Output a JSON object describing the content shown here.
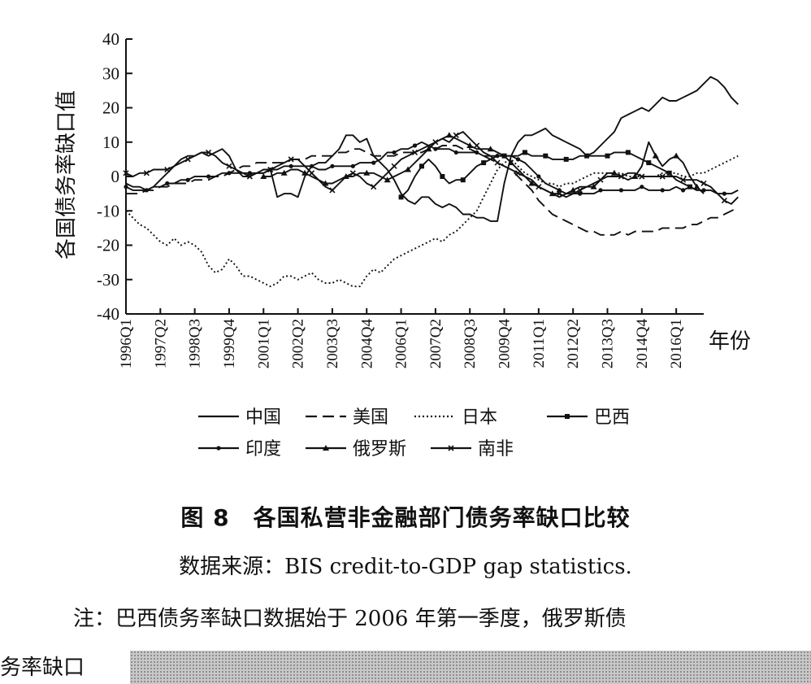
{
  "chart_data": {
    "type": "line",
    "title": "",
    "xlabel": "年份",
    "ylabel": "各国债务率缺口值",
    "ylim": [
      -40,
      40
    ],
    "yticks": [
      40,
      30,
      20,
      10,
      0,
      -10,
      -20,
      -30,
      -40
    ],
    "xticks": [
      "1996Q1",
      "1997Q2",
      "1998Q3",
      "1999Q4",
      "2001Q1",
      "2002Q2",
      "2003Q3",
      "2004Q4",
      "2006Q1",
      "2007Q2",
      "2008Q3",
      "2009Q4",
      "2011Q1",
      "2012Q2",
      "2013Q3",
      "2014Q4",
      "2016Q1"
    ],
    "x_start": "1996Q1",
    "x_end": "2017Q1",
    "legend_position": "bottom",
    "series": [
      {
        "name": "中国",
        "style": "solid",
        "start": "1996Q1",
        "values": [
          -2,
          -3,
          -3,
          -4,
          -3,
          -1,
          1,
          3,
          5,
          6,
          6,
          7,
          6,
          7,
          8,
          6,
          2,
          0,
          0,
          1,
          2,
          2,
          -6,
          -5,
          -5,
          -6,
          0,
          3,
          4,
          4,
          6,
          8,
          12,
          12,
          10,
          11,
          6,
          4,
          2,
          -1,
          -5,
          -7,
          -8,
          -6,
          -6,
          -8,
          -9,
          -8,
          -9,
          -11,
          -11,
          -12,
          -12,
          -13,
          -13,
          -2,
          6,
          10,
          12,
          12,
          13,
          14,
          12,
          11,
          10,
          9,
          8,
          6,
          7,
          9,
          11,
          13,
          17,
          18,
          19,
          20,
          19,
          21,
          23,
          22,
          22,
          23,
          24,
          25,
          27,
          29,
          28,
          26,
          23,
          21
        ]
      },
      {
        "name": "美国",
        "style": "dashed",
        "start": "1996Q1",
        "values": [
          -5,
          -5,
          -5,
          -4,
          -4,
          -3,
          -3,
          -2,
          -2,
          -2,
          -1,
          -1,
          -1,
          0,
          0,
          1,
          2,
          3,
          3,
          4,
          4,
          4,
          4,
          4,
          5,
          5,
          5,
          6,
          6,
          6,
          6,
          7,
          7,
          8,
          8,
          7,
          6,
          6,
          6,
          6,
          7,
          7,
          7,
          7,
          8,
          8,
          9,
          9,
          9,
          8,
          8,
          7,
          6,
          5,
          4,
          3,
          2,
          0,
          -2,
          -4,
          -7,
          -9,
          -11,
          -12,
          -13,
          -14,
          -15,
          -16,
          -16,
          -17,
          -17,
          -17,
          -16,
          -17,
          -16,
          -16,
          -16,
          -16,
          -15,
          -15,
          -15,
          -15,
          -14,
          -14,
          -13,
          -12,
          -12,
          -11,
          -10,
          -9
        ]
      },
      {
        "name": "日本",
        "style": "dotted",
        "start": "1996Q1",
        "values": [
          -10,
          -12,
          -14,
          -15,
          -17,
          -19,
          -20,
          -18,
          -20,
          -19,
          -20,
          -22,
          -26,
          -28,
          -27,
          -24,
          -26,
          -29,
          -29,
          -30,
          -31,
          -32,
          -31,
          -29,
          -29,
          -30,
          -29,
          -28,
          -30,
          -31,
          -31,
          -30,
          -31,
          -32,
          -32,
          -29,
          -27,
          -28,
          -26,
          -24,
          -23,
          -22,
          -21,
          -20,
          -19,
          -18,
          -19,
          -17,
          -16,
          -14,
          -12,
          -10,
          -6,
          -2,
          2,
          4,
          5,
          3,
          1,
          0,
          -1,
          -2,
          -2,
          -3,
          -2,
          -2,
          -1,
          0,
          1,
          1,
          1,
          1,
          1,
          0,
          0,
          0,
          0,
          0,
          1,
          1,
          1,
          0,
          0,
          1,
          1,
          2,
          3,
          4,
          5,
          6
        ]
      },
      {
        "name": "巴西",
        "style": "solid-square",
        "start": "2006Q1",
        "values": [
          -6,
          -4,
          0,
          3,
          5,
          3,
          0,
          -2,
          -1,
          -1,
          1,
          3,
          4,
          5,
          6,
          6,
          6,
          6,
          7,
          6,
          6,
          6,
          5,
          5,
          5,
          5,
          6,
          6,
          6,
          6,
          6,
          7,
          7,
          7,
          6,
          5,
          4,
          3,
          2,
          1,
          -1,
          -2,
          -3,
          -4
        ]
      },
      {
        "name": "印度",
        "style": "solid-dot",
        "start": "1996Q1",
        "values": [
          -3,
          -4,
          -4,
          -4,
          -3,
          -3,
          -2,
          -2,
          -1,
          -1,
          0,
          0,
          0,
          0,
          1,
          1,
          1,
          1,
          1,
          1,
          1,
          2,
          2,
          3,
          3,
          3,
          3,
          3,
          2,
          2,
          3,
          3,
          3,
          3,
          4,
          4,
          4,
          5,
          7,
          7,
          8,
          8,
          9,
          10,
          9,
          8,
          8,
          8,
          7,
          7,
          7,
          7,
          6,
          6,
          6,
          6,
          6,
          5,
          4,
          2,
          0,
          -2,
          -3,
          -4,
          -5,
          -5,
          -5,
          -5,
          -5,
          -4,
          -4,
          -4,
          -4,
          -4,
          -4,
          -3,
          -4,
          -4,
          -4,
          -4,
          -3,
          -4,
          -3,
          -4,
          -4,
          -4,
          -5,
          -5,
          -5,
          -4
        ]
      },
      {
        "name": "俄罗斯",
        "style": "solid-triangle",
        "start": "2001Q1",
        "values": [
          0,
          0,
          1,
          1,
          2,
          2,
          1,
          0,
          -1,
          -2,
          -2,
          -1,
          0,
          0,
          1,
          1,
          1,
          0,
          -1,
          0,
          1,
          2,
          4,
          6,
          8,
          10,
          11,
          12,
          11,
          10,
          9,
          8,
          8,
          8,
          7,
          6,
          4,
          2,
          0,
          -2,
          -3,
          -4,
          -5,
          -6,
          -5,
          -4,
          -3,
          -3,
          -3,
          -1,
          1,
          1,
          0,
          -1,
          0,
          3,
          10,
          6,
          3,
          5,
          6,
          4,
          0,
          -3,
          -5
        ]
      },
      {
        "name": "南非",
        "style": "solid-x",
        "start": "1996Q1",
        "values": [
          1,
          0,
          1,
          1,
          2,
          2,
          2,
          3,
          4,
          5,
          6,
          7,
          7,
          6,
          4,
          3,
          2,
          1,
          0,
          1,
          1,
          2,
          3,
          4,
          5,
          5,
          3,
          1,
          -1,
          -3,
          -4,
          -2,
          0,
          1,
          0,
          -2,
          -3,
          -1,
          1,
          3,
          5,
          6,
          7,
          8,
          9,
          10,
          11,
          10,
          12,
          13,
          11,
          9,
          7,
          6,
          4,
          3,
          2,
          1,
          0,
          -1,
          -3,
          -4,
          -5,
          -5,
          -6,
          -5,
          -4,
          -3,
          -2,
          -1,
          0,
          0,
          0,
          1,
          1,
          0,
          0,
          0,
          0,
          0,
          0,
          -1,
          -1,
          -1,
          -2,
          -3,
          -5,
          -7,
          -8,
          -6
        ]
      }
    ]
  },
  "caption": "图 8　各国私营非金融部门债务率缺口比较",
  "source": "数据来源：BIS credit-to-GDP gap statistics.",
  "note": "注：巴西债务率缺口数据始于 2006 年第一季度，俄罗斯债",
  "note_continued": "务率缺口"
}
